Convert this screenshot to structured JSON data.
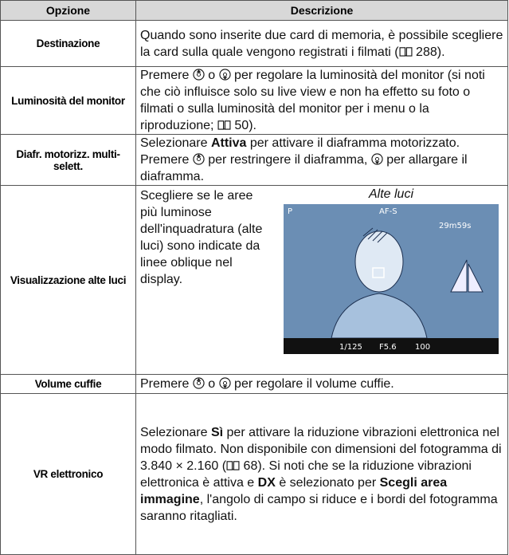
{
  "table": {
    "headers": [
      "Opzione",
      "Descrizione"
    ],
    "rows": [
      {
        "option": "Destinazione",
        "description": [
          "Quando sono inserite due card di memoria, è possibile scegliere la card sulla quale vengono registrati i filmati (",
          " 288)."
        ]
      },
      {
        "option": "Luminosità del monitor",
        "description": [
          "Premere ",
          " o ",
          " per regolare la luminosità del monitor (si noti che ciò influisce solo su live view e non ha effetto su foto o filmati o sulla luminosità del monitor per i menu o la riproduzione; ",
          " 50)."
        ]
      },
      {
        "option": "Diafr. motorizz. multi-selett.",
        "description": [
          "Selezionare ",
          "Attiva",
          " per attivare il diaframma motorizzato. Premere ",
          " per restringere il diaframma, ",
          " per allargare il diaframma."
        ]
      },
      {
        "option": "Visualizzazione alte luci",
        "description": [
          "Scegliere se le aree più luminose dell'inquadratura (alte luci) sono indicate da linee oblique nel display."
        ],
        "caption": "Alte luci",
        "screen": [
          "P",
          "AF-S",
          "29m59s",
          "1/125",
          "F5.6",
          "100"
        ]
      },
      {
        "option": "Volume cuffie",
        "description": [
          "Premere ",
          " o ",
          " per regolare il volume cuffie."
        ]
      },
      {
        "option": "VR elettronico",
        "description": [
          "Selezionare ",
          "Sì",
          " per attivare la riduzione vibrazioni elettronica nel modo filmato. Non disponibile con dimensioni del fotogramma di 3.840 × 2.160 (",
          " 68). Si noti che se la riduzione vibrazioni elettronica è attiva e ",
          "DX",
          " è selezionato per ",
          "Scegli area immagine",
          ", l'angolo di campo si riduce e i bordi del fotogramma saranno ritagliati."
        ]
      }
    ]
  }
}
